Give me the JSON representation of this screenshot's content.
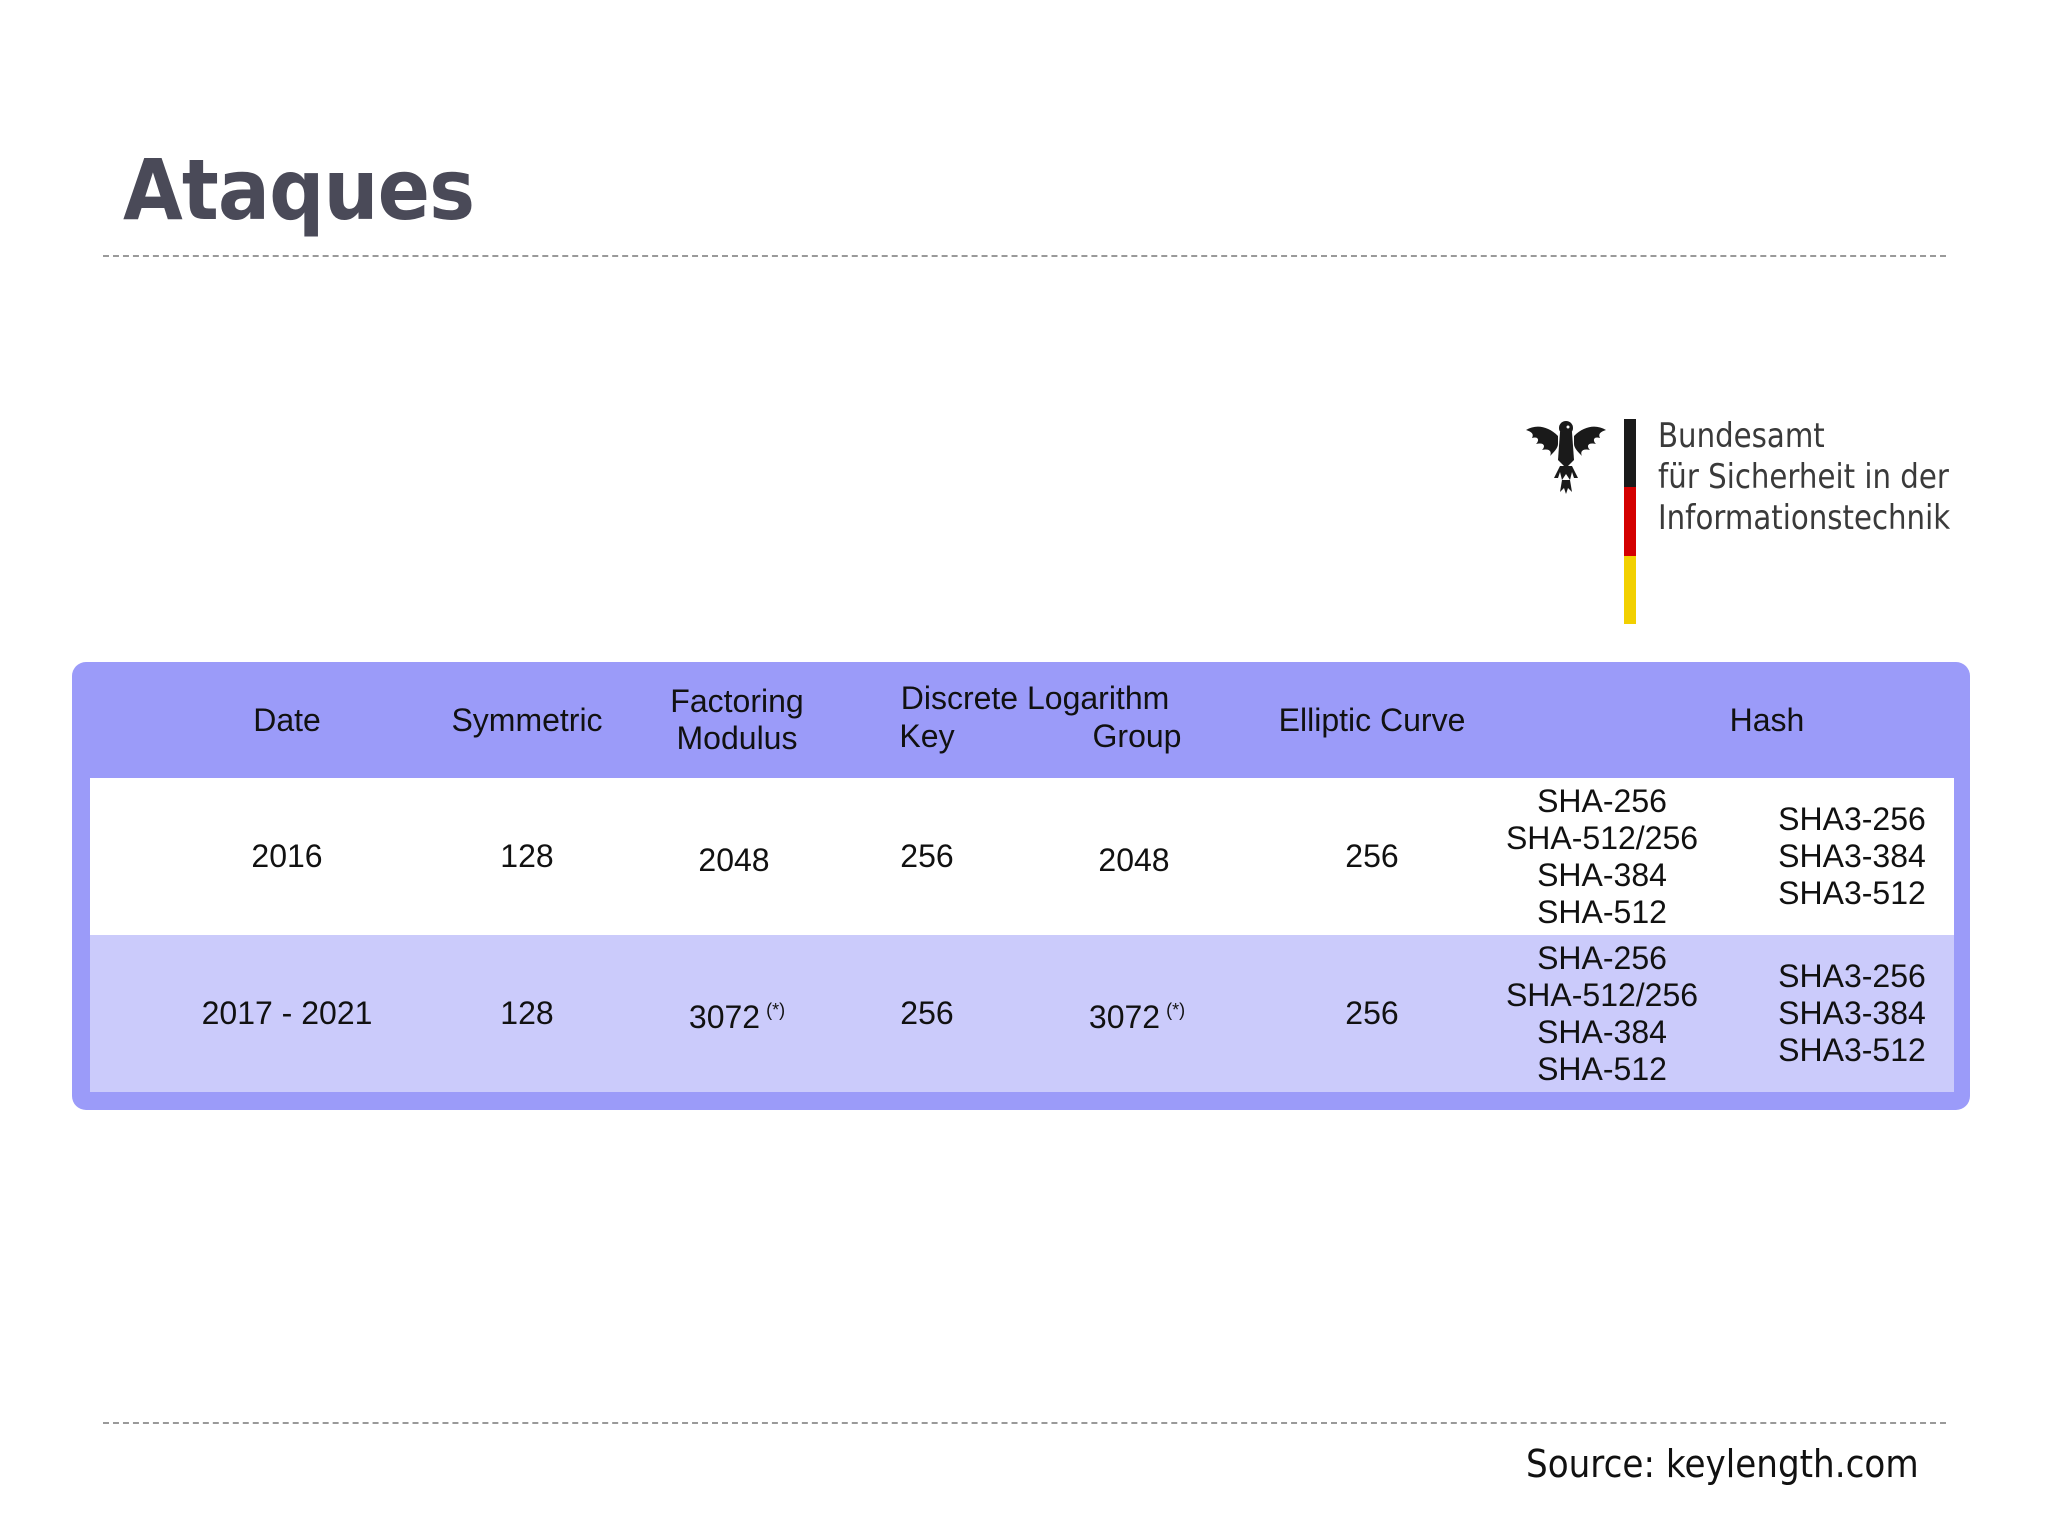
{
  "slide": {
    "title": "Ataques",
    "source": "Source: keylength.com"
  },
  "logo": {
    "icon": "federal-eagle-icon",
    "line1": "Bundesamt",
    "line2": "für Sicherheit in der",
    "line3": "Informationstechnik",
    "flag_colors": [
      "#1a1a1a",
      "#d40000",
      "#f2d000"
    ]
  },
  "table": {
    "colors": {
      "header": "#9b9bf9",
      "row_even": "#ffffff",
      "row_odd": "#cbcbfb"
    },
    "headers": {
      "date": "Date",
      "symmetric": "Symmetric",
      "factoring_line1": "Factoring",
      "factoring_line2": "Modulus",
      "discrete_log": "Discrete Logarithm",
      "dl_key": "Key",
      "dl_group": "Group",
      "elliptic_curve": "Elliptic Curve",
      "hash": "Hash"
    },
    "rows": [
      {
        "date": "2016",
        "symmetric": "128",
        "factoring": "2048",
        "factoring_note": "",
        "dl_key": "256",
        "dl_group": "2048",
        "dl_group_note": "",
        "elliptic_curve": "256",
        "hash_sha2": [
          "SHA-256",
          "SHA-512/256",
          "SHA-384",
          "SHA-512"
        ],
        "hash_sha3": [
          "SHA3-256",
          "SHA3-384",
          "SHA3-512"
        ]
      },
      {
        "date": "2017 - 2021",
        "symmetric": "128",
        "factoring": "3072",
        "factoring_note": "(*)",
        "dl_key": "256",
        "dl_group": "3072",
        "dl_group_note": "(*)",
        "elliptic_curve": "256",
        "hash_sha2": [
          "SHA-256",
          "SHA-512/256",
          "SHA-384",
          "SHA-512"
        ],
        "hash_sha3": [
          "SHA3-256",
          "SHA3-384",
          "SHA3-512"
        ]
      }
    ]
  }
}
